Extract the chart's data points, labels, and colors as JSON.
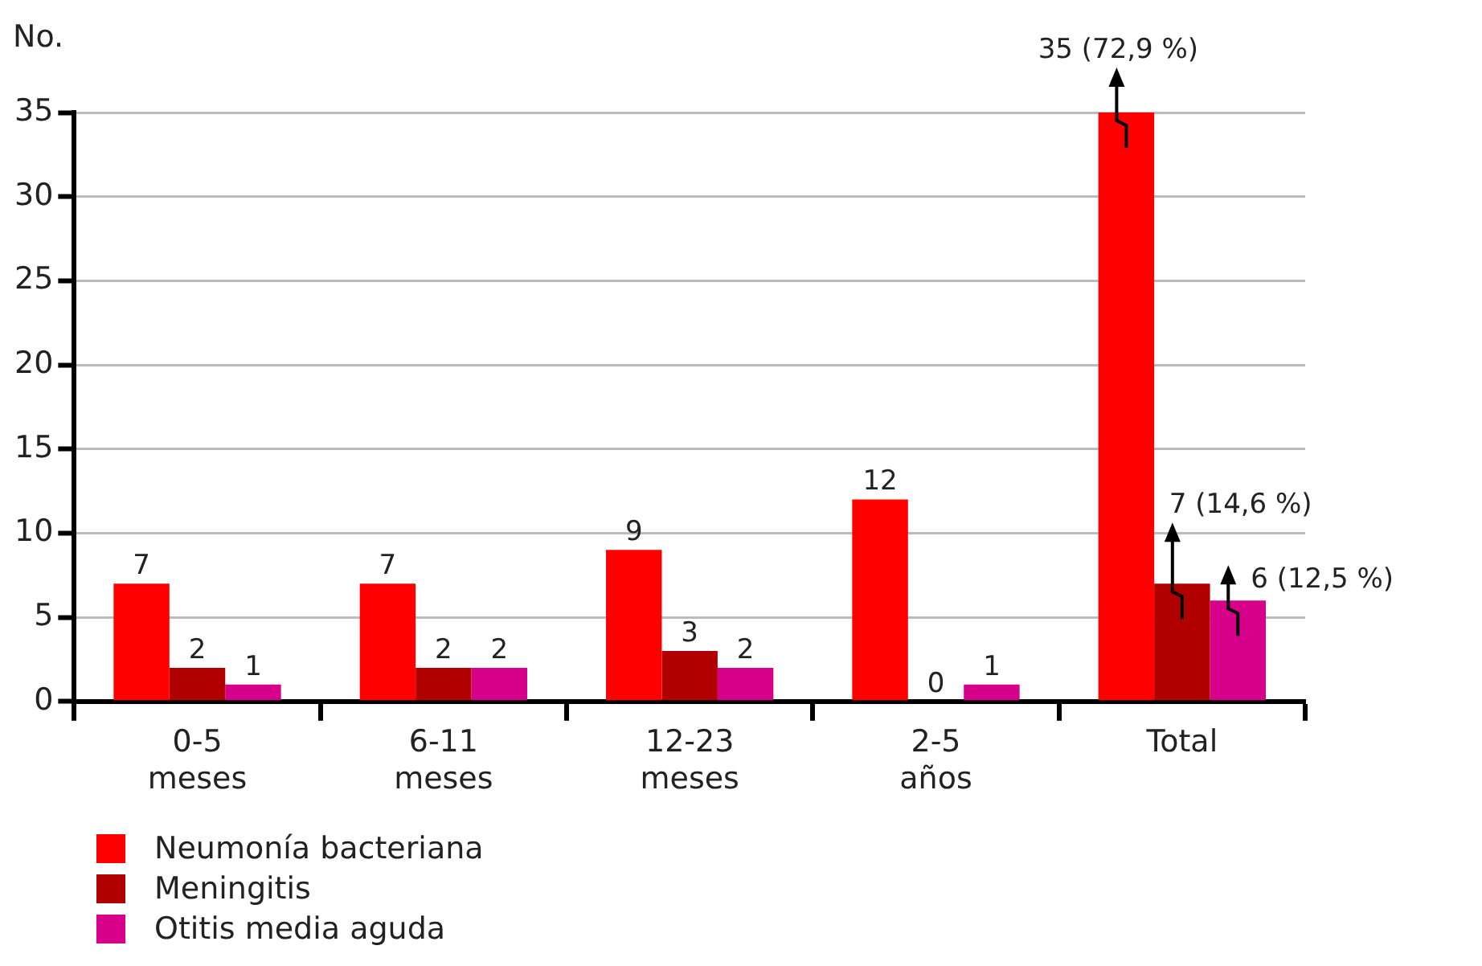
{
  "chart_data": {
    "type": "bar",
    "ylabel": "No.",
    "categories": [
      "0-5 meses",
      "6-11 meses",
      "12-23 meses",
      "2-5 años",
      "Total"
    ],
    "series": [
      {
        "name": "Neumonía bacteriana",
        "color": "#ff0000",
        "values": [
          7,
          7,
          9,
          12,
          35
        ],
        "value_labels": [
          "7",
          "7",
          "9",
          "12",
          "35 (72,9 %)"
        ]
      },
      {
        "name": "Meningitis",
        "color": "#b00000",
        "values": [
          2,
          2,
          3,
          0,
          7
        ],
        "value_labels": [
          "2",
          "2",
          "3",
          "0",
          "7 (14,6 %)"
        ]
      },
      {
        "name": "Otitis media aguda",
        "color": "#d6008a",
        "values": [
          1,
          2,
          2,
          1,
          6
        ],
        "value_labels": [
          "1",
          "2",
          "2",
          "1",
          "6 (12,5 %)"
        ]
      }
    ],
    "ylim": [
      0,
      35
    ],
    "yticks": [
      0,
      5,
      10,
      15,
      20,
      25,
      30,
      35
    ],
    "grid": "y",
    "legend": "bottom left"
  }
}
